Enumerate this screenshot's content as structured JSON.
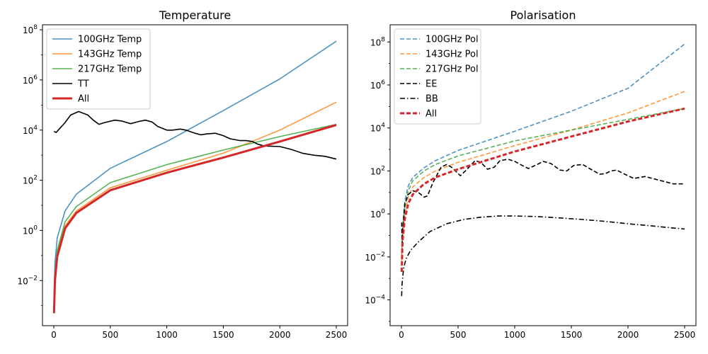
{
  "chart_data": [
    {
      "type": "line",
      "title": "Temperature",
      "xlabel": "",
      "ylabel": "",
      "xlim": [
        -100,
        2600
      ],
      "ylim_log10": [
        -3.8,
        8.2
      ],
      "y_scale": "log",
      "x_ticks": [
        0,
        500,
        1000,
        1500,
        2000,
        2500
      ],
      "x_tick_labels": [
        "0",
        "500",
        "1000",
        "1500",
        "2000",
        "2500"
      ],
      "y_ticks_log10": [
        -2,
        0,
        2,
        4,
        6,
        8
      ],
      "y_tick_labels": [
        {
          "base": "10",
          "exp": "−2"
        },
        {
          "base": "10",
          "exp": "0"
        },
        {
          "base": "10",
          "exp": "2"
        },
        {
          "base": "10",
          "exp": "4"
        },
        {
          "base": "10",
          "exp": "6"
        },
        {
          "base": "10",
          "exp": "8"
        }
      ],
      "legend_position": "upper-left",
      "grid": false,
      "series": [
        {
          "name": "100GHz Temp",
          "color": "#1f77b4",
          "opacity": 0.8,
          "dash": "solid",
          "width": 1.6,
          "x": [
            2,
            10,
            30,
            100,
            200,
            500,
            1000,
            1500,
            2000,
            2500
          ],
          "y": [
            0.002,
            0.05,
            0.5,
            6,
            28,
            300,
            3500,
            60000,
            1100000,
            35000000
          ]
        },
        {
          "name": "143GHz Temp",
          "color": "#ff7f0e",
          "opacity": 0.8,
          "dash": "solid",
          "width": 1.6,
          "x": [
            2,
            10,
            30,
            100,
            200,
            500,
            1000,
            1500,
            2000,
            2500
          ],
          "y": [
            0.0005,
            0.012,
            0.12,
            1.5,
            6,
            50,
            250,
            1200,
            10000,
            130000
          ]
        },
        {
          "name": "217GHz Temp",
          "color": "#2ca02c",
          "opacity": 0.8,
          "dash": "solid",
          "width": 1.6,
          "x": [
            2,
            10,
            30,
            100,
            200,
            500,
            1000,
            1500,
            2000,
            2500
          ],
          "y": [
            0.0006,
            0.016,
            0.16,
            2.2,
            9,
            80,
            420,
            1600,
            5500,
            17000
          ]
        },
        {
          "name": "TT",
          "color": "#000000",
          "opacity": 1,
          "dash": "solid",
          "width": 1.6,
          "x": [
            2,
            20,
            100,
            150,
            220,
            300,
            350,
            400,
            450,
            540,
            600,
            680,
            750,
            810,
            870,
            920,
            1000,
            1050,
            1120,
            1170,
            1250,
            1300,
            1350,
            1430,
            1500,
            1560,
            1650,
            1700,
            1760,
            1800,
            1850,
            1900,
            2000,
            2100,
            2200,
            2300,
            2400,
            2500
          ],
          "y": [
            9000,
            8000,
            20000,
            40000,
            55000,
            40000,
            25000,
            17000,
            20000,
            25000,
            23000,
            18000,
            22000,
            25000,
            21000,
            14000,
            10000,
            10000,
            11000,
            10000,
            7500,
            6500,
            7000,
            7500,
            6000,
            4500,
            3800,
            3800,
            3500,
            2800,
            2400,
            2300,
            2200,
            1700,
            1200,
            1000,
            900,
            700
          ]
        },
        {
          "name": "All",
          "color": "#d62728",
          "opacity": 1,
          "dash": "solid",
          "width": 3,
          "x": [
            2,
            10,
            30,
            100,
            200,
            500,
            1000,
            1500,
            2000,
            2500
          ],
          "y": [
            0.0005,
            0.01,
            0.09,
            1.2,
            5,
            40,
            200,
            800,
            3500,
            16000
          ]
        }
      ]
    },
    {
      "type": "line",
      "title": "Polarisation",
      "xlabel": "",
      "ylabel": "",
      "xlim": [
        -100,
        2600
      ],
      "ylim_log10": [
        -5.2,
        8.8
      ],
      "y_scale": "log",
      "x_ticks": [
        0,
        500,
        1000,
        1500,
        2000,
        2500
      ],
      "x_tick_labels": [
        "0",
        "500",
        "1000",
        "1500",
        "2000",
        "2500"
      ],
      "y_ticks_log10": [
        -4,
        -2,
        0,
        2,
        4,
        6,
        8
      ],
      "y_tick_labels": [
        {
          "base": "10",
          "exp": "−4"
        },
        {
          "base": "10",
          "exp": "−2"
        },
        {
          "base": "10",
          "exp": "0"
        },
        {
          "base": "10",
          "exp": "2"
        },
        {
          "base": "10",
          "exp": "4"
        },
        {
          "base": "10",
          "exp": "6"
        },
        {
          "base": "10",
          "exp": "8"
        }
      ],
      "legend_position": "upper-left",
      "grid": false,
      "series": [
        {
          "name": "100GHz Pol",
          "color": "#1f77b4",
          "opacity": 0.8,
          "dash": "dashed",
          "width": 1.6,
          "x": [
            2,
            10,
            30,
            60,
            100,
            200,
            300,
            500,
            1000,
            1500,
            2000,
            2500
          ],
          "y": [
            0.01,
            0.2,
            4,
            20,
            50,
            140,
            300,
            900,
            7000,
            60000,
            700000,
            80000000
          ]
        },
        {
          "name": "143GHz Pol",
          "color": "#ff7f0e",
          "opacity": 0.8,
          "dash": "dashed",
          "width": 1.6,
          "x": [
            2,
            10,
            30,
            60,
            100,
            200,
            300,
            500,
            1000,
            1500,
            2000,
            2500
          ],
          "y": [
            0.005,
            0.1,
            1,
            6,
            18,
            50,
            100,
            250,
            1500,
            8000,
            50000,
            500000
          ]
        },
        {
          "name": "217GHz Pol",
          "color": "#2ca02c",
          "opacity": 0.8,
          "dash": "dashed",
          "width": 1.6,
          "x": [
            2,
            10,
            30,
            60,
            100,
            200,
            300,
            500,
            1000,
            1500,
            2000,
            2500
          ],
          "y": [
            0.008,
            0.15,
            2,
            12,
            35,
            100,
            200,
            500,
            2500,
            8000,
            25000,
            80000
          ]
        },
        {
          "name": "EE",
          "color": "#000000",
          "opacity": 1,
          "dash": "dashed",
          "width": 1.6,
          "x": [
            2,
            6,
            12,
            30,
            60,
            100,
            150,
            200,
            230,
            280,
            350,
            400,
            450,
            520,
            580,
            650,
            700,
            760,
            820,
            870,
            940,
            1000,
            1050,
            1120,
            1200,
            1250,
            1320,
            1400,
            1460,
            1520,
            1600,
            1660,
            1750,
            1800,
            1850,
            1900,
            1950,
            2050,
            2150,
            2250,
            2400,
            2500
          ],
          "y": [
            0.4,
            0.03,
            0.2,
            3,
            8,
            12,
            10,
            6,
            7,
            30,
            150,
            200,
            140,
            60,
            120,
            300,
            250,
            120,
            150,
            300,
            350,
            280,
            200,
            130,
            200,
            280,
            220,
            110,
            100,
            180,
            200,
            130,
            70,
            75,
            100,
            110,
            80,
            45,
            55,
            40,
            25,
            25
          ]
        },
        {
          "name": "BB",
          "color": "#000000",
          "opacity": 1,
          "dash": "dashdot",
          "width": 1.6,
          "x": [
            2,
            5,
            10,
            20,
            40,
            80,
            150,
            250,
            400,
            550,
            700,
            850,
            1000,
            1200,
            1400,
            1600,
            1800,
            2000,
            2200,
            2400,
            2500
          ],
          "y": [
            0.00015,
            0.0005,
            0.001,
            0.003,
            0.008,
            0.02,
            0.05,
            0.15,
            0.35,
            0.55,
            0.7,
            0.8,
            0.8,
            0.75,
            0.65,
            0.55,
            0.45,
            0.35,
            0.28,
            0.22,
            0.2
          ]
        },
        {
          "name": "All",
          "color": "#d62728",
          "opacity": 1,
          "dash": "dashed",
          "width": 3,
          "x": [
            2,
            10,
            30,
            60,
            100,
            200,
            300,
            500,
            1000,
            1500,
            2000,
            2500
          ],
          "y": [
            0.002,
            0.06,
            0.6,
            3,
            8,
            25,
            50,
            120,
            800,
            4000,
            20000,
            80000
          ]
        }
      ]
    }
  ]
}
